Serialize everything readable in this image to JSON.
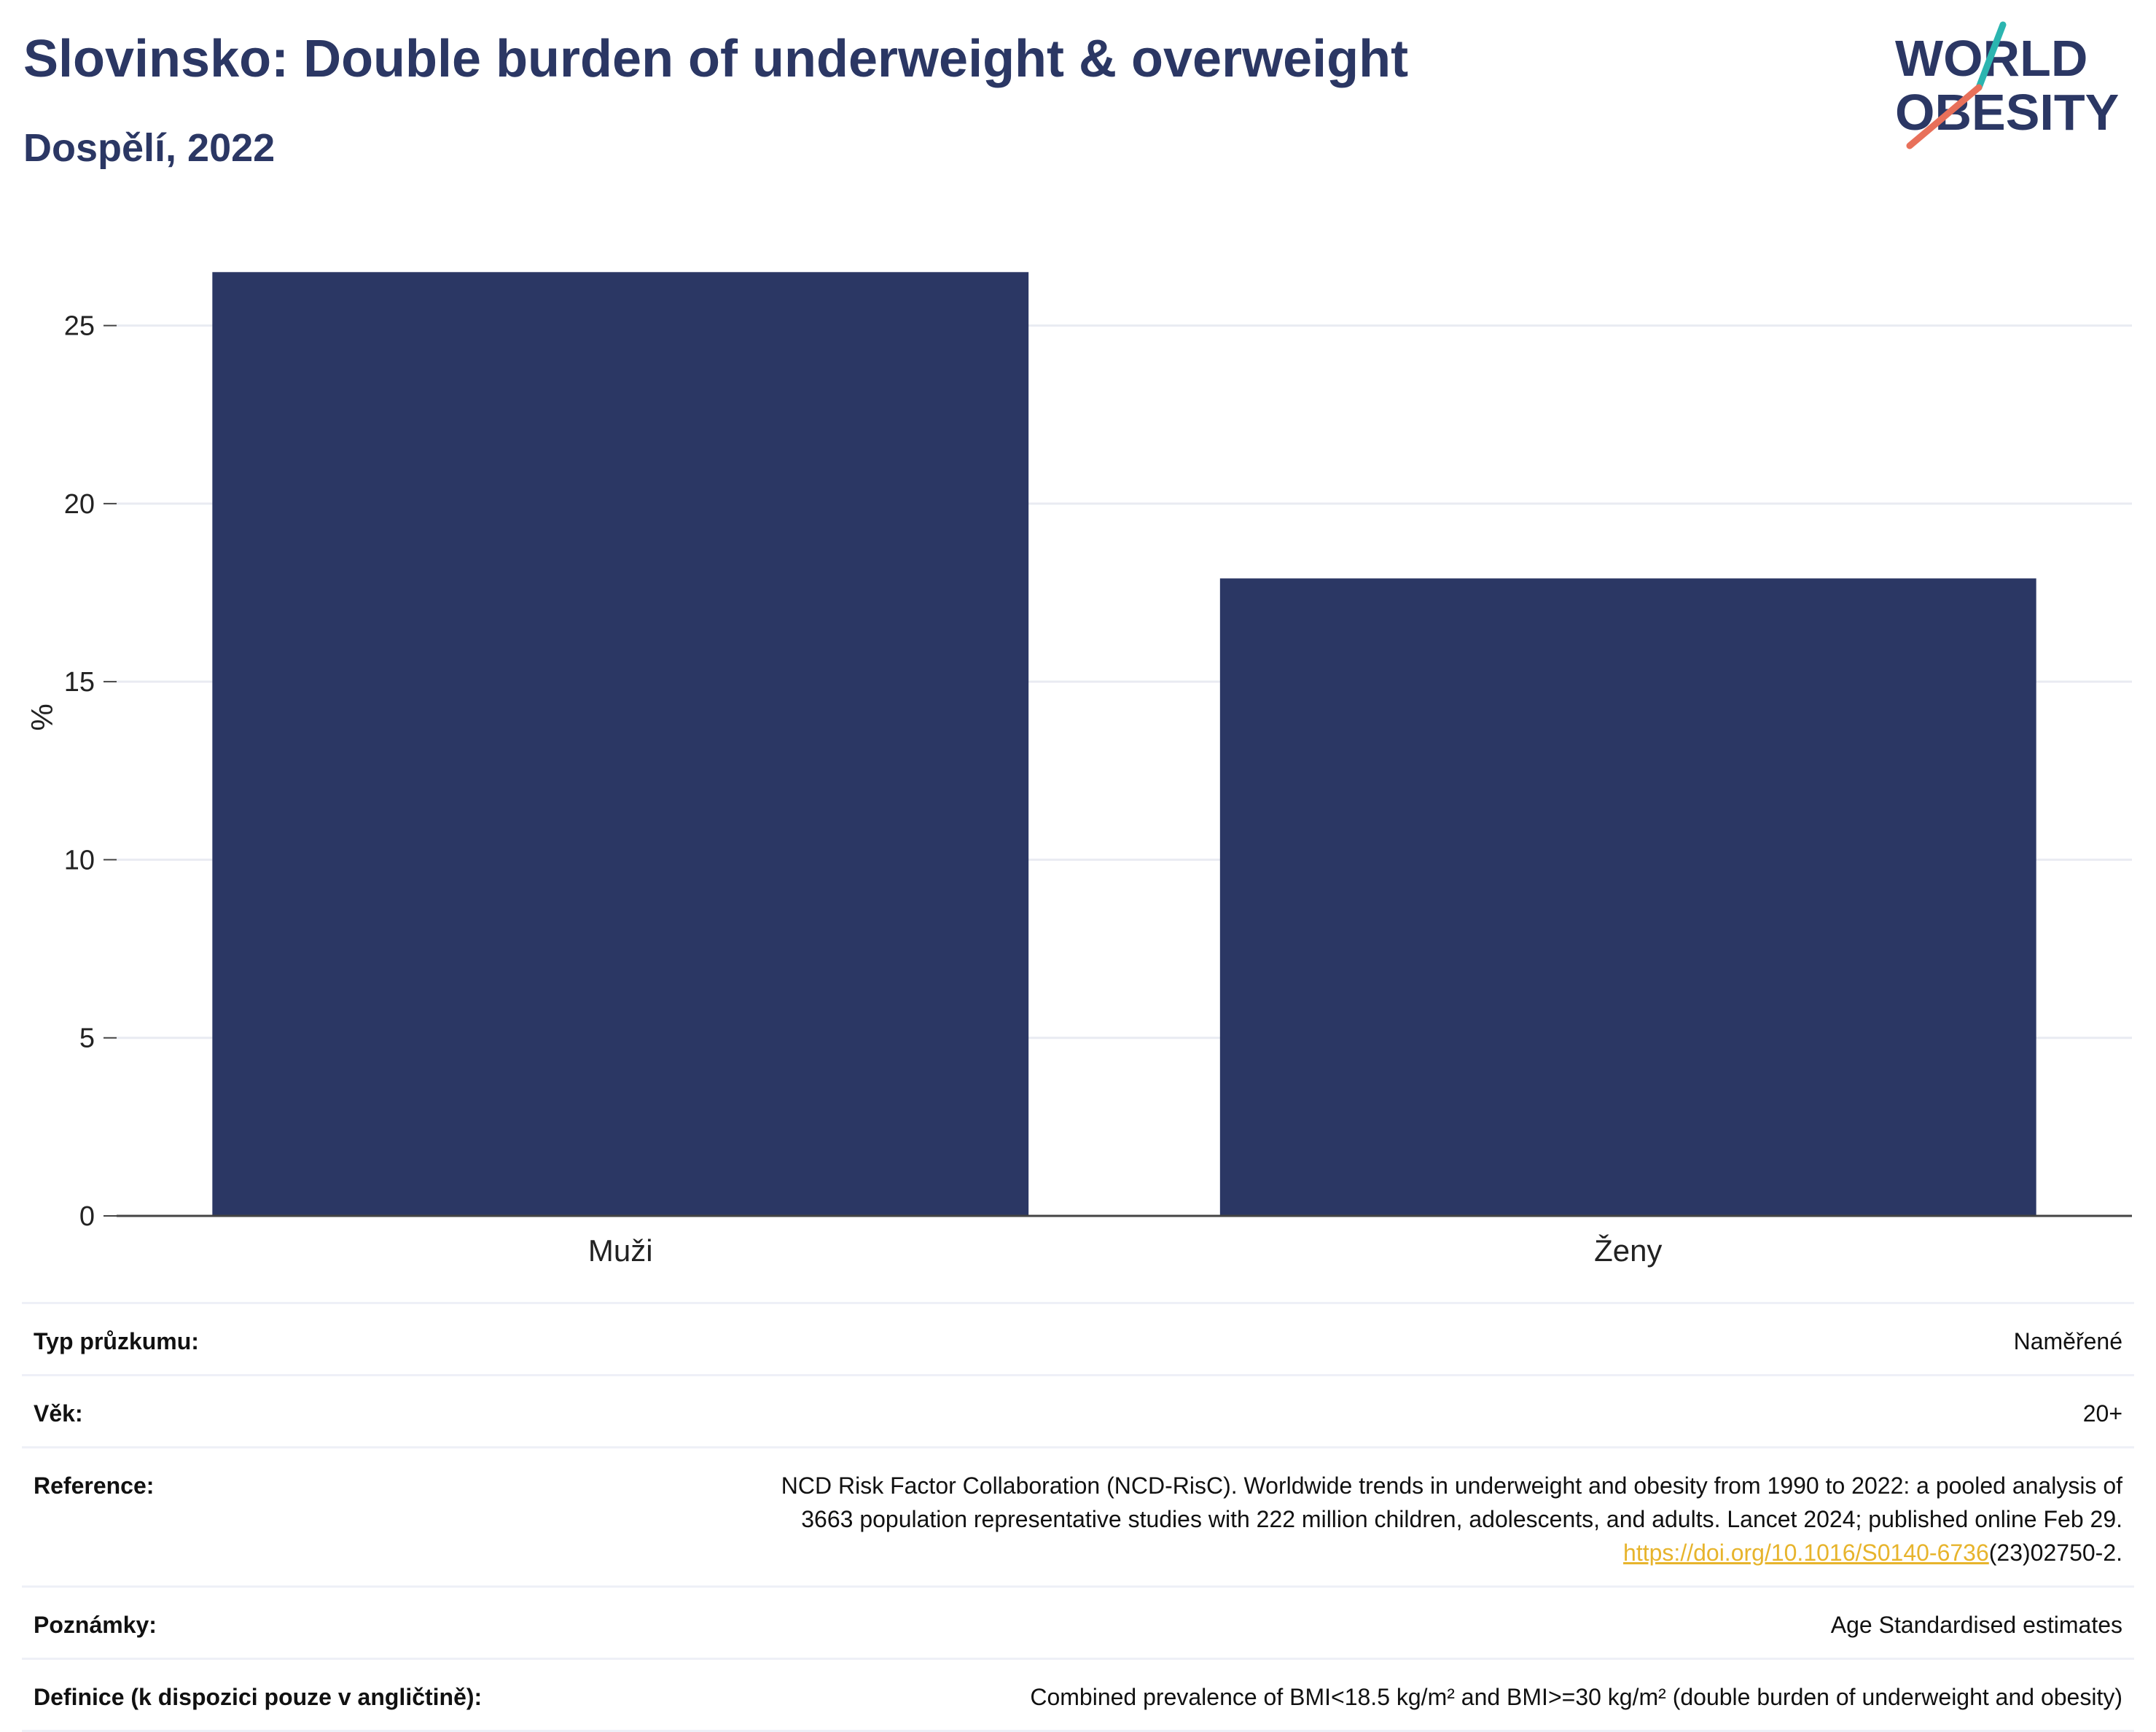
{
  "header": {
    "title": "Slovinsko: Double burden of underweight & overweight",
    "subtitle": "Dospělí, 2022"
  },
  "logo": {
    "line1": "WORLD",
    "line2": "OBESITY",
    "accent_colors": [
      "#2bb5b0",
      "#e8705a"
    ]
  },
  "colors": {
    "bar": "#2b3764",
    "title": "#2b3764",
    "grid": "#e9ebf2",
    "link": "#e7b42c"
  },
  "chart_data": {
    "type": "bar",
    "title": "Slovinsko: Double burden of underweight & overweight",
    "subtitle": "Dospělí, 2022",
    "categories": [
      "Muži",
      "Ženy"
    ],
    "values": [
      26.5,
      17.9
    ],
    "xlabel": "",
    "ylabel": "%",
    "ylim": [
      0,
      28
    ],
    "yticks": [
      0,
      5,
      10,
      15,
      20,
      25
    ],
    "grid": true,
    "legend": "none"
  },
  "meta": {
    "rows": [
      {
        "key": "Typ průzkumu:",
        "value": "Naměřené"
      },
      {
        "key": "Věk:",
        "value": "20+"
      },
      {
        "key": "Reference:",
        "value_line1": "NCD Risk Factor Collaboration (NCD-RisC). Worldwide trends in underweight and obesity from 1990 to 2022: a pooled analysis of",
        "value_line2": "3663 population representative studies with 222 million children, adolescents, and adults. Lancet 2024; published online Feb 29.",
        "link_text": "https://doi.org/10.1016/S0140-6736",
        "link_suffix": "(23)02750-2."
      },
      {
        "key": "Poznámky:",
        "value": "Age Standardised estimates"
      },
      {
        "key": "Definice (k dispozici pouze v angličtině):",
        "value": "Combined prevalence of BMI<18.5 kg/m² and BMI>=30 kg/m² (double burden of underweight and obesity)"
      }
    ]
  }
}
